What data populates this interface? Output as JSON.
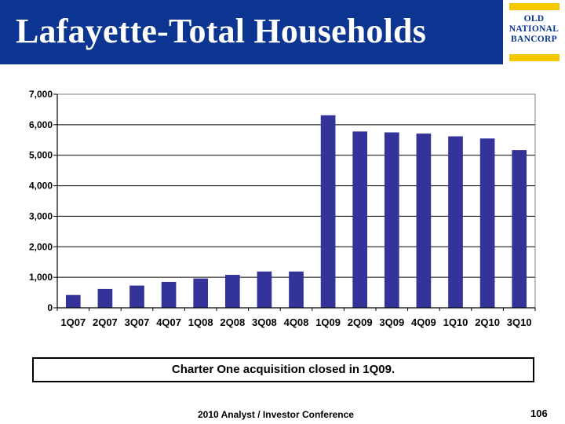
{
  "slide": {
    "title": "Lafayette-Total Households",
    "note": "Charter One acquisition closed in 1Q09.",
    "footer": "2010 Analyst / Investor Conference",
    "page_number": "106"
  },
  "logo": {
    "lines": [
      "OLD",
      "NATIONAL",
      "BANCORP"
    ],
    "colors": {
      "navy": "#0b3590",
      "gold": "#f5c800"
    }
  },
  "chart_data": {
    "type": "bar",
    "title": "",
    "xlabel": "",
    "ylabel": "",
    "categories": [
      "1Q07",
      "2Q07",
      "3Q07",
      "4Q07",
      "1Q08",
      "2Q08",
      "3Q08",
      "4Q08",
      "1Q09",
      "2Q09",
      "3Q09",
      "4Q09",
      "1Q10",
      "2Q10",
      "3Q10"
    ],
    "values": [
      420,
      620,
      730,
      850,
      960,
      1080,
      1190,
      1190,
      6310,
      5780,
      5750,
      5710,
      5620,
      5550,
      5170
    ],
    "ylim": [
      0,
      7000
    ],
    "yticks": [
      "0",
      "1,000",
      "2,000",
      "3,000",
      "4,000",
      "5,000",
      "6,000",
      "7,000"
    ],
    "grid": true,
    "legend": "none",
    "bar_color": "#333399"
  }
}
